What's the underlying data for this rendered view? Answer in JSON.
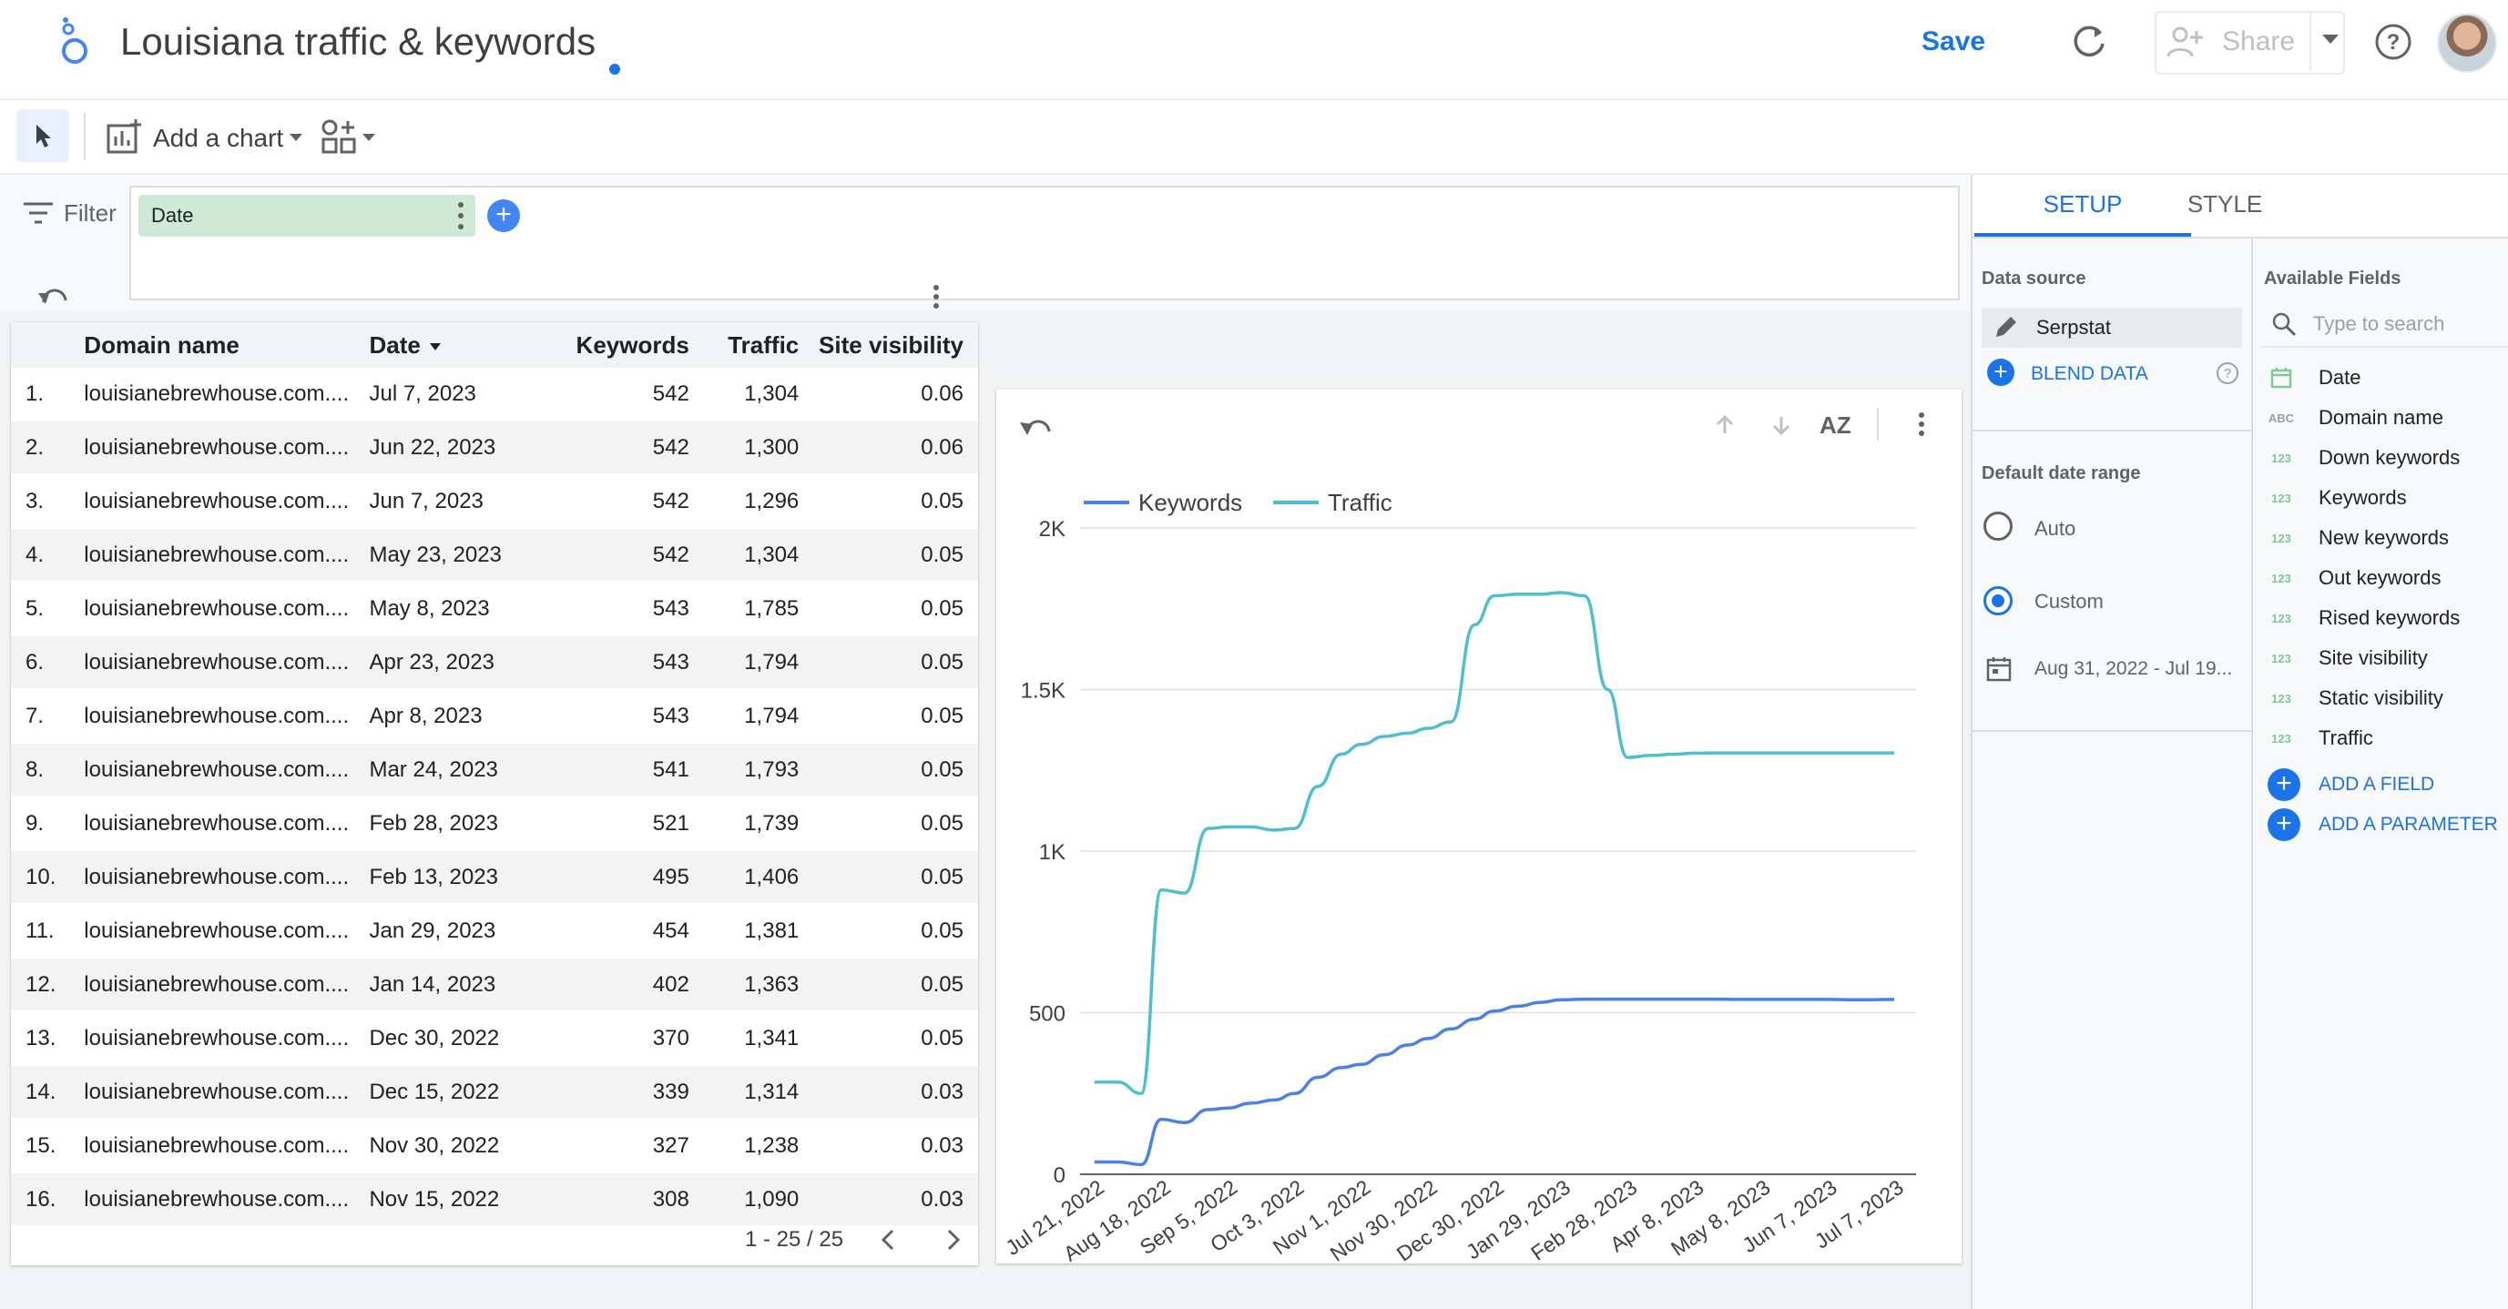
{
  "header": {
    "title": "Louisiana traffic & keywords",
    "save_label": "Save",
    "share_label": "Share"
  },
  "toolbar": {
    "add_chart_label": "Add a chart"
  },
  "filter": {
    "label": "Filter",
    "date_chip": "Date"
  },
  "table": {
    "columns": [
      "Domain name",
      "Date",
      "Keywords",
      "Traffic",
      "Site visibility"
    ],
    "rows": [
      {
        "idx": "1.",
        "domain": "louisianebrewhouse.com....",
        "date": "Jul 7, 2023",
        "keywords": "542",
        "traffic": "1,304",
        "visibility": "0.06"
      },
      {
        "idx": "2.",
        "domain": "louisianebrewhouse.com....",
        "date": "Jun 22, 2023",
        "keywords": "542",
        "traffic": "1,300",
        "visibility": "0.06"
      },
      {
        "idx": "3.",
        "domain": "louisianebrewhouse.com....",
        "date": "Jun 7, 2023",
        "keywords": "542",
        "traffic": "1,296",
        "visibility": "0.05"
      },
      {
        "idx": "4.",
        "domain": "louisianebrewhouse.com....",
        "date": "May 23, 2023",
        "keywords": "542",
        "traffic": "1,304",
        "visibility": "0.05"
      },
      {
        "idx": "5.",
        "domain": "louisianebrewhouse.com....",
        "date": "May 8, 2023",
        "keywords": "543",
        "traffic": "1,785",
        "visibility": "0.05"
      },
      {
        "idx": "6.",
        "domain": "louisianebrewhouse.com....",
        "date": "Apr 23, 2023",
        "keywords": "543",
        "traffic": "1,794",
        "visibility": "0.05"
      },
      {
        "idx": "7.",
        "domain": "louisianebrewhouse.com....",
        "date": "Apr 8, 2023",
        "keywords": "543",
        "traffic": "1,794",
        "visibility": "0.05"
      },
      {
        "idx": "8.",
        "domain": "louisianebrewhouse.com....",
        "date": "Mar 24, 2023",
        "keywords": "541",
        "traffic": "1,793",
        "visibility": "0.05"
      },
      {
        "idx": "9.",
        "domain": "louisianebrewhouse.com....",
        "date": "Feb 28, 2023",
        "keywords": "521",
        "traffic": "1,739",
        "visibility": "0.05"
      },
      {
        "idx": "10.",
        "domain": "louisianebrewhouse.com....",
        "date": "Feb 13, 2023",
        "keywords": "495",
        "traffic": "1,406",
        "visibility": "0.05"
      },
      {
        "idx": "11.",
        "domain": "louisianebrewhouse.com....",
        "date": "Jan 29, 2023",
        "keywords": "454",
        "traffic": "1,381",
        "visibility": "0.05"
      },
      {
        "idx": "12.",
        "domain": "louisianebrewhouse.com....",
        "date": "Jan 14, 2023",
        "keywords": "402",
        "traffic": "1,363",
        "visibility": "0.05"
      },
      {
        "idx": "13.",
        "domain": "louisianebrewhouse.com....",
        "date": "Dec 30, 2022",
        "keywords": "370",
        "traffic": "1,341",
        "visibility": "0.05"
      },
      {
        "idx": "14.",
        "domain": "louisianebrewhouse.com....",
        "date": "Dec 15, 2022",
        "keywords": "339",
        "traffic": "1,314",
        "visibility": "0.03"
      },
      {
        "idx": "15.",
        "domain": "louisianebrewhouse.com....",
        "date": "Nov 30, 2022",
        "keywords": "327",
        "traffic": "1,238",
        "visibility": "0.03"
      },
      {
        "idx": "16.",
        "domain": "louisianebrewhouse.com....",
        "date": "Nov 15, 2022",
        "keywords": "308",
        "traffic": "1,090",
        "visibility": "0.03"
      }
    ],
    "pagination": "1 - 25 / 25"
  },
  "chart_data": {
    "type": "line",
    "title": "",
    "xlabel": "",
    "ylabel": "",
    "ylim": [
      0,
      2000
    ],
    "yticks": [
      0,
      500,
      1000,
      1500,
      2000
    ],
    "ytick_labels": [
      "0",
      "500",
      "1K",
      "1.5K",
      "2K"
    ],
    "x_tick_labels": [
      "Jul 21, 2022",
      "Aug 18, 2022",
      "Sep 5, 2022",
      "Oct 3, 2022",
      "Nov 1, 2022",
      "Nov 30, 2022",
      "Dec 30, 2022",
      "Jan 29, 2023",
      "Feb 28, 2023",
      "Apr 8, 2023",
      "May 8, 2023",
      "Jun 7, 2023",
      "Jul 7, 2023"
    ],
    "legend_position": "top-left",
    "x": [
      0,
      0.35,
      0.7,
      1.0,
      1.35,
      1.7,
      2.0,
      2.35,
      2.7,
      3.0,
      3.35,
      3.7,
      4.0,
      4.35,
      4.7,
      5.0,
      5.35,
      5.7,
      6.0,
      6.35,
      6.7,
      7.0,
      7.35,
      7.7,
      8.0,
      8.35,
      8.7,
      9.0,
      9.35,
      9.7,
      10.0,
      10.35,
      10.7,
      11.0,
      11.5,
      12.0
    ],
    "series": [
      {
        "name": "Keywords",
        "color": "#4a80e8",
        "values": [
          38,
          38,
          30,
          170,
          160,
          200,
          205,
          220,
          230,
          250,
          300,
          330,
          340,
          370,
          400,
          420,
          450,
          480,
          505,
          520,
          532,
          540,
          542,
          542,
          542,
          542,
          542,
          542,
          542,
          541,
          541,
          541,
          541,
          541,
          540,
          541
        ]
      },
      {
        "name": "Traffic",
        "color": "#4fbfcf",
        "values": [
          285,
          285,
          250,
          880,
          870,
          1070,
          1075,
          1075,
          1065,
          1070,
          1200,
          1300,
          1330,
          1355,
          1365,
          1380,
          1400,
          1700,
          1790,
          1795,
          1795,
          1800,
          1790,
          1500,
          1290,
          1296,
          1300,
          1303,
          1304,
          1304,
          1304,
          1304,
          1304,
          1304,
          1304,
          1304
        ]
      }
    ]
  },
  "panel": {
    "tab_setup": "SETUP",
    "tab_style": "STYLE",
    "data_source_label": "Data source",
    "data_source_name": "Serpstat",
    "blend_label": "BLEND DATA",
    "default_date_range_label": "Default date range",
    "auto_label": "Auto",
    "custom_label": "Custom",
    "date_range_value": "Aug 31, 2022 - Jul 19...",
    "available_fields_label": "Available Fields",
    "search_placeholder": "Type to search",
    "fields": [
      {
        "icon": "cal",
        "name": "Date"
      },
      {
        "icon": "ABC",
        "name": "Domain name"
      },
      {
        "icon": "123",
        "name": "Down keywords"
      },
      {
        "icon": "123",
        "name": "Keywords"
      },
      {
        "icon": "123",
        "name": "New keywords"
      },
      {
        "icon": "123",
        "name": "Out keywords"
      },
      {
        "icon": "123",
        "name": "Rised keywords"
      },
      {
        "icon": "123",
        "name": "Site visibility"
      },
      {
        "icon": "123",
        "name": "Static visibility"
      },
      {
        "icon": "123",
        "name": "Traffic"
      }
    ],
    "add_field_label": "ADD A FIELD",
    "add_parameter_label": "ADD A PARAMETER"
  }
}
